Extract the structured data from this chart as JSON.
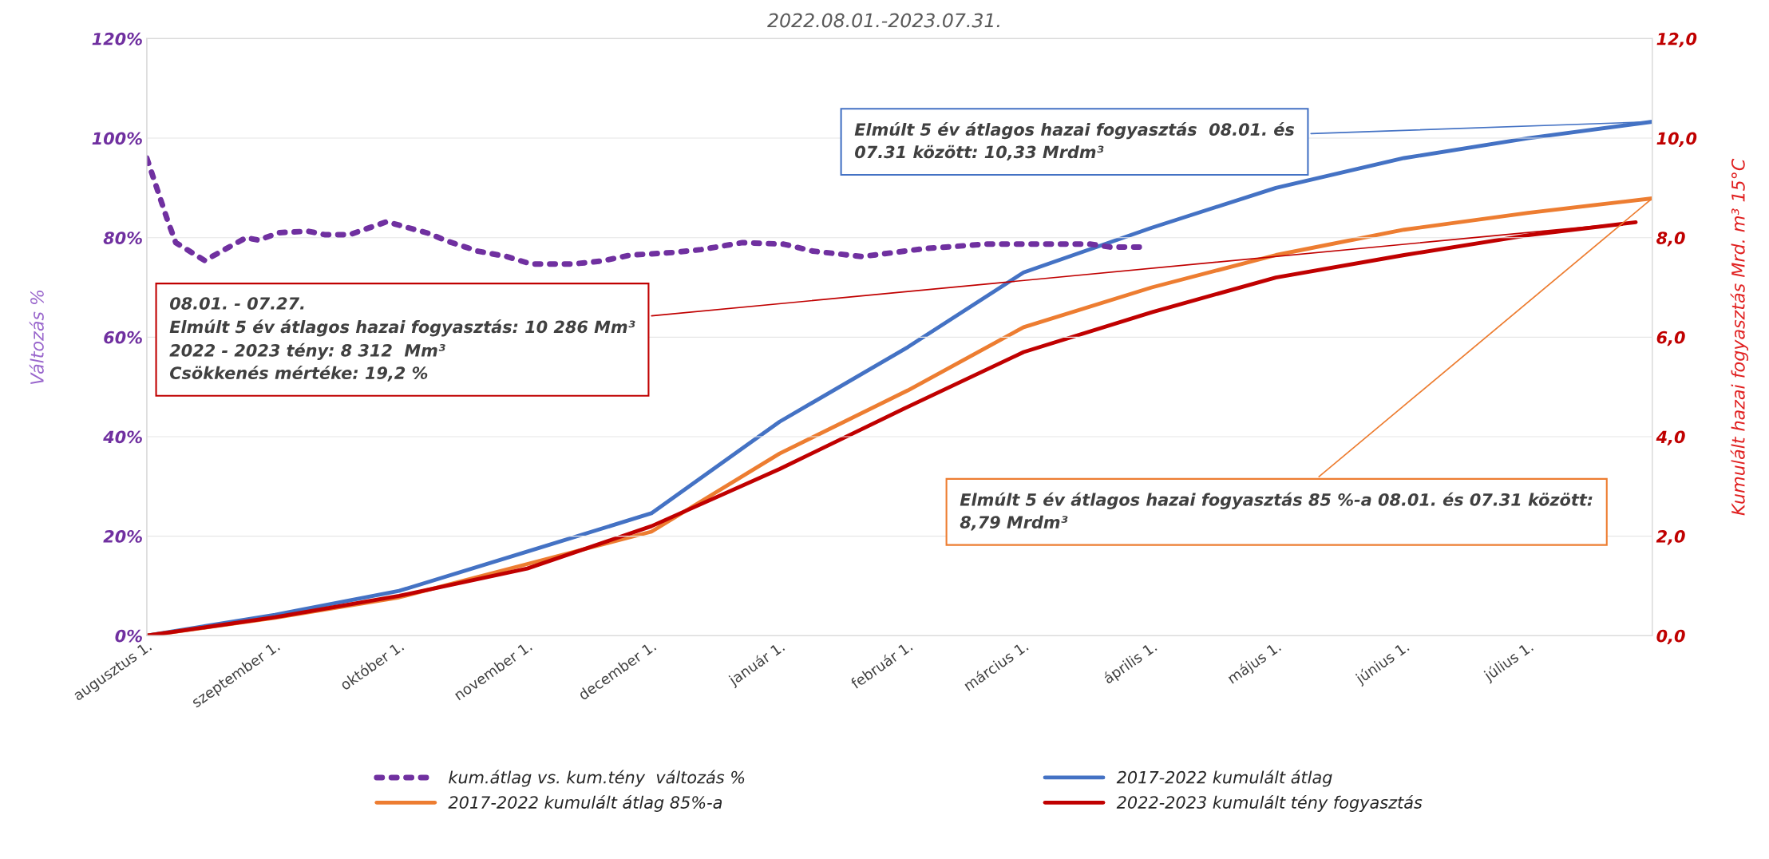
{
  "chart_data": {
    "type": "line",
    "title": "2022.08.01.-2023.07.31.",
    "ylabel": "Változás %",
    "y2label": "Kumulált hazai fogyasztás Mrd. m³ 15°C",
    "xlim": [
      "2022-08-01",
      "2023-07-31"
    ],
    "xticks": [
      {
        "value": "2022-08-01",
        "label": "augusztus 1."
      },
      {
        "value": "2022-09-01",
        "label": "szeptember 1."
      },
      {
        "value": "2022-10-01",
        "label": "október 1."
      },
      {
        "value": "2022-11-01",
        "label": "november 1."
      },
      {
        "value": "2022-12-01",
        "label": "december 1."
      },
      {
        "value": "2023-01-01",
        "label": "január 1."
      },
      {
        "value": "2023-02-01",
        "label": "február 1."
      },
      {
        "value": "2023-03-01",
        "label": "március 1."
      },
      {
        "value": "2023-04-01",
        "label": "április 1."
      },
      {
        "value": "2023-05-01",
        "label": "május 1."
      },
      {
        "value": "2023-06-01",
        "label": "június 1."
      },
      {
        "value": "2023-07-01",
        "label": "július 1."
      }
    ],
    "ylim": [
      0,
      120
    ],
    "yticks": [
      {
        "value": 0,
        "label": "0%"
      },
      {
        "value": 20,
        "label": "20%"
      },
      {
        "value": 40,
        "label": "40%"
      },
      {
        "value": 60,
        "label": "60%"
      },
      {
        "value": 80,
        "label": "80%"
      },
      {
        "value": 100,
        "label": "100%"
      },
      {
        "value": 120,
        "label": "120%"
      }
    ],
    "y2lim": [
      0,
      12
    ],
    "y2ticks": [
      {
        "value": 0,
        "label": "0,0"
      },
      {
        "value": 2,
        "label": "2,0"
      },
      {
        "value": 4,
        "label": "4,0"
      },
      {
        "value": 6,
        "label": "6,0"
      },
      {
        "value": 8,
        "label": "8,0"
      },
      {
        "value": 10,
        "label": "10,0"
      },
      {
        "value": 12,
        "label": "12,0"
      }
    ],
    "grid": "y",
    "legend": "bottom",
    "series": [
      {
        "name": "kum.átlag vs. kum.tény  változás %",
        "color": "#7030a0",
        "line_style": "dotted",
        "x": [
          "2022-08-01",
          "2022-08-06",
          "2022-08-08",
          "2022-08-15",
          "2022-08-25",
          "2022-08-28",
          "2022-09-02",
          "2022-09-09",
          "2022-09-13",
          "2022-09-19",
          "2022-09-28",
          "2022-10-08",
          "2022-10-13",
          "2022-10-20",
          "2022-10-27",
          "2022-11-02",
          "2022-11-12",
          "2022-11-19",
          "2022-11-26",
          "2022-12-06",
          "2022-12-13",
          "2022-12-23",
          "2023-01-02",
          "2023-01-09",
          "2023-01-21",
          "2023-02-05",
          "2023-02-20",
          "2023-03-07",
          "2023-03-17",
          "2023-03-22",
          "2023-03-29"
        ],
        "values": [
          96,
          83.5,
          79,
          75.4,
          80,
          79.5,
          81,
          81.3,
          80.6,
          80.6,
          83.2,
          80.9,
          79.2,
          77.3,
          76.2,
          74.7,
          74.7,
          75.3,
          76.5,
          77,
          77.6,
          79,
          78.7,
          77.3,
          76.2,
          77.8,
          78.7,
          78.7,
          78.7,
          78.1,
          78.1
        ]
      },
      {
        "name": "2017-2022 kumulált átlag",
        "color": "#4472c4",
        "axis": "y2",
        "x": [
          "2022-08-01",
          "2022-09-01",
          "2022-10-01",
          "2022-11-01",
          "2022-12-01",
          "2023-01-01",
          "2023-02-01",
          "2023-03-01",
          "2023-04-01",
          "2023-05-01",
          "2023-06-01",
          "2023-07-01",
          "2023-07-31"
        ],
        "values": [
          0,
          0.42,
          0.9,
          1.69,
          2.46,
          4.3,
          5.8,
          7.3,
          8.2,
          9.0,
          9.6,
          10.0,
          10.33
        ]
      },
      {
        "name": "2017-2022 kumulált átlag 85%-a",
        "color": "#ed7d31",
        "axis": "y2",
        "x": [
          "2022-08-01",
          "2022-09-01",
          "2022-10-01",
          "2022-11-01",
          "2022-12-01",
          "2023-01-01",
          "2023-02-01",
          "2023-03-01",
          "2023-04-01",
          "2023-05-01",
          "2023-06-01",
          "2023-07-01",
          "2023-07-31"
        ],
        "values": [
          0,
          0.36,
          0.77,
          1.44,
          2.09,
          3.66,
          4.93,
          6.2,
          7.0,
          7.65,
          8.16,
          8.5,
          8.79
        ]
      },
      {
        "name": "2022-2023 kumulált tény fogyasztás",
        "color": "#c00000",
        "axis": "y2",
        "x": [
          "2022-08-01",
          "2022-09-01",
          "2022-10-01",
          "2022-11-01",
          "2022-12-01",
          "2023-01-01",
          "2023-02-01",
          "2023-03-01",
          "2023-04-01",
          "2023-05-01",
          "2023-06-01",
          "2023-07-01",
          "2023-07-27"
        ],
        "values": [
          0,
          0.37,
          0.8,
          1.35,
          2.2,
          3.35,
          4.6,
          5.7,
          6.5,
          7.2,
          7.65,
          8.05,
          8.31
        ]
      }
    ],
    "annotations": [
      {
        "text": "Elmúlt 5 év átlagos hazai fogyasztás  08.01. és\n07.31 között: 10,33 Mrdm³",
        "x": "2023-07-31",
        "y": 103.3
      },
      {
        "text": "08.01. - 07.27.\nElmúlt 5 év átlagos hazai fogyasztás: 10 286 Mm³\n2022 - 2023 tény: 8 312  Mm³\nCsökkenés mértéke: 19,2 %",
        "x": "2023-07-27",
        "y": 83.1
      },
      {
        "text": "Elmúlt 5 év átlagos hazai fogyasztás 85 %-a 08.01. és 07.31 között:\n8,79 Mrdm³",
        "x": "2023-07-31",
        "y": 87.9
      }
    ]
  }
}
